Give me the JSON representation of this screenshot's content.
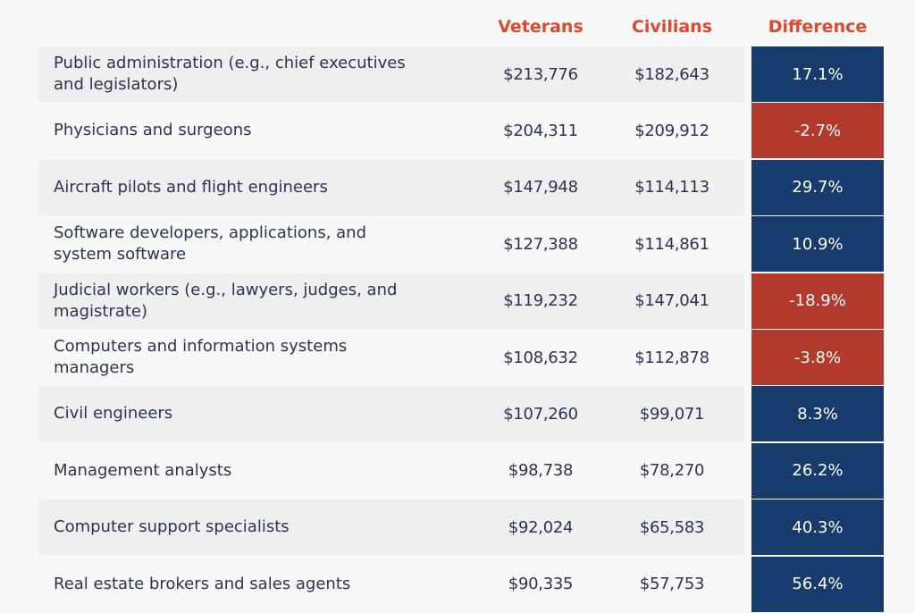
{
  "colors": {
    "header": "#e0482e",
    "positive": "#183b6e",
    "negative": "#b23a2d",
    "text": "#2b3553"
  },
  "chart_data": {
    "type": "table",
    "columns": [
      "Veterans",
      "Civilians",
      "Difference"
    ],
    "rows": [
      {
        "label": "Public administration (e.g., chief executives and legislators)",
        "veterans": "$213,776",
        "civilians": "$182,643",
        "difference": "17.1%"
      },
      {
        "label": "Physicians and surgeons",
        "veterans": "$204,311",
        "civilians": "$209,912",
        "difference": "-2.7%"
      },
      {
        "label": "Aircraft pilots and flight engineers",
        "veterans": "$147,948",
        "civilians": "$114,113",
        "difference": "29.7%"
      },
      {
        "label": "Software developers, applications, and system software",
        "veterans": "$127,388",
        "civilians": "$114,861",
        "difference": "10.9%"
      },
      {
        "label": "Judicial workers (e.g., lawyers, judges, and magistrate)",
        "veterans": "$119,232",
        "civilians": "$147,041",
        "difference": "-18.9%"
      },
      {
        "label": "Computers and information systems managers",
        "veterans": "$108,632",
        "civilians": "$112,878",
        "difference": "-3.8%"
      },
      {
        "label": "Civil engineers",
        "veterans": "$107,260",
        "civilians": "$99,071",
        "difference": "8.3%"
      },
      {
        "label": "Management analysts",
        "veterans": "$98,738",
        "civilians": "$78,270",
        "difference": "26.2%"
      },
      {
        "label": "Computer support specialists",
        "veterans": "$92,024",
        "civilians": "$65,583",
        "difference": "40.3%"
      },
      {
        "label": "Real estate brokers and sales agents",
        "veterans": "$90,335",
        "civilians": "$57,753",
        "difference": "56.4%"
      }
    ]
  }
}
